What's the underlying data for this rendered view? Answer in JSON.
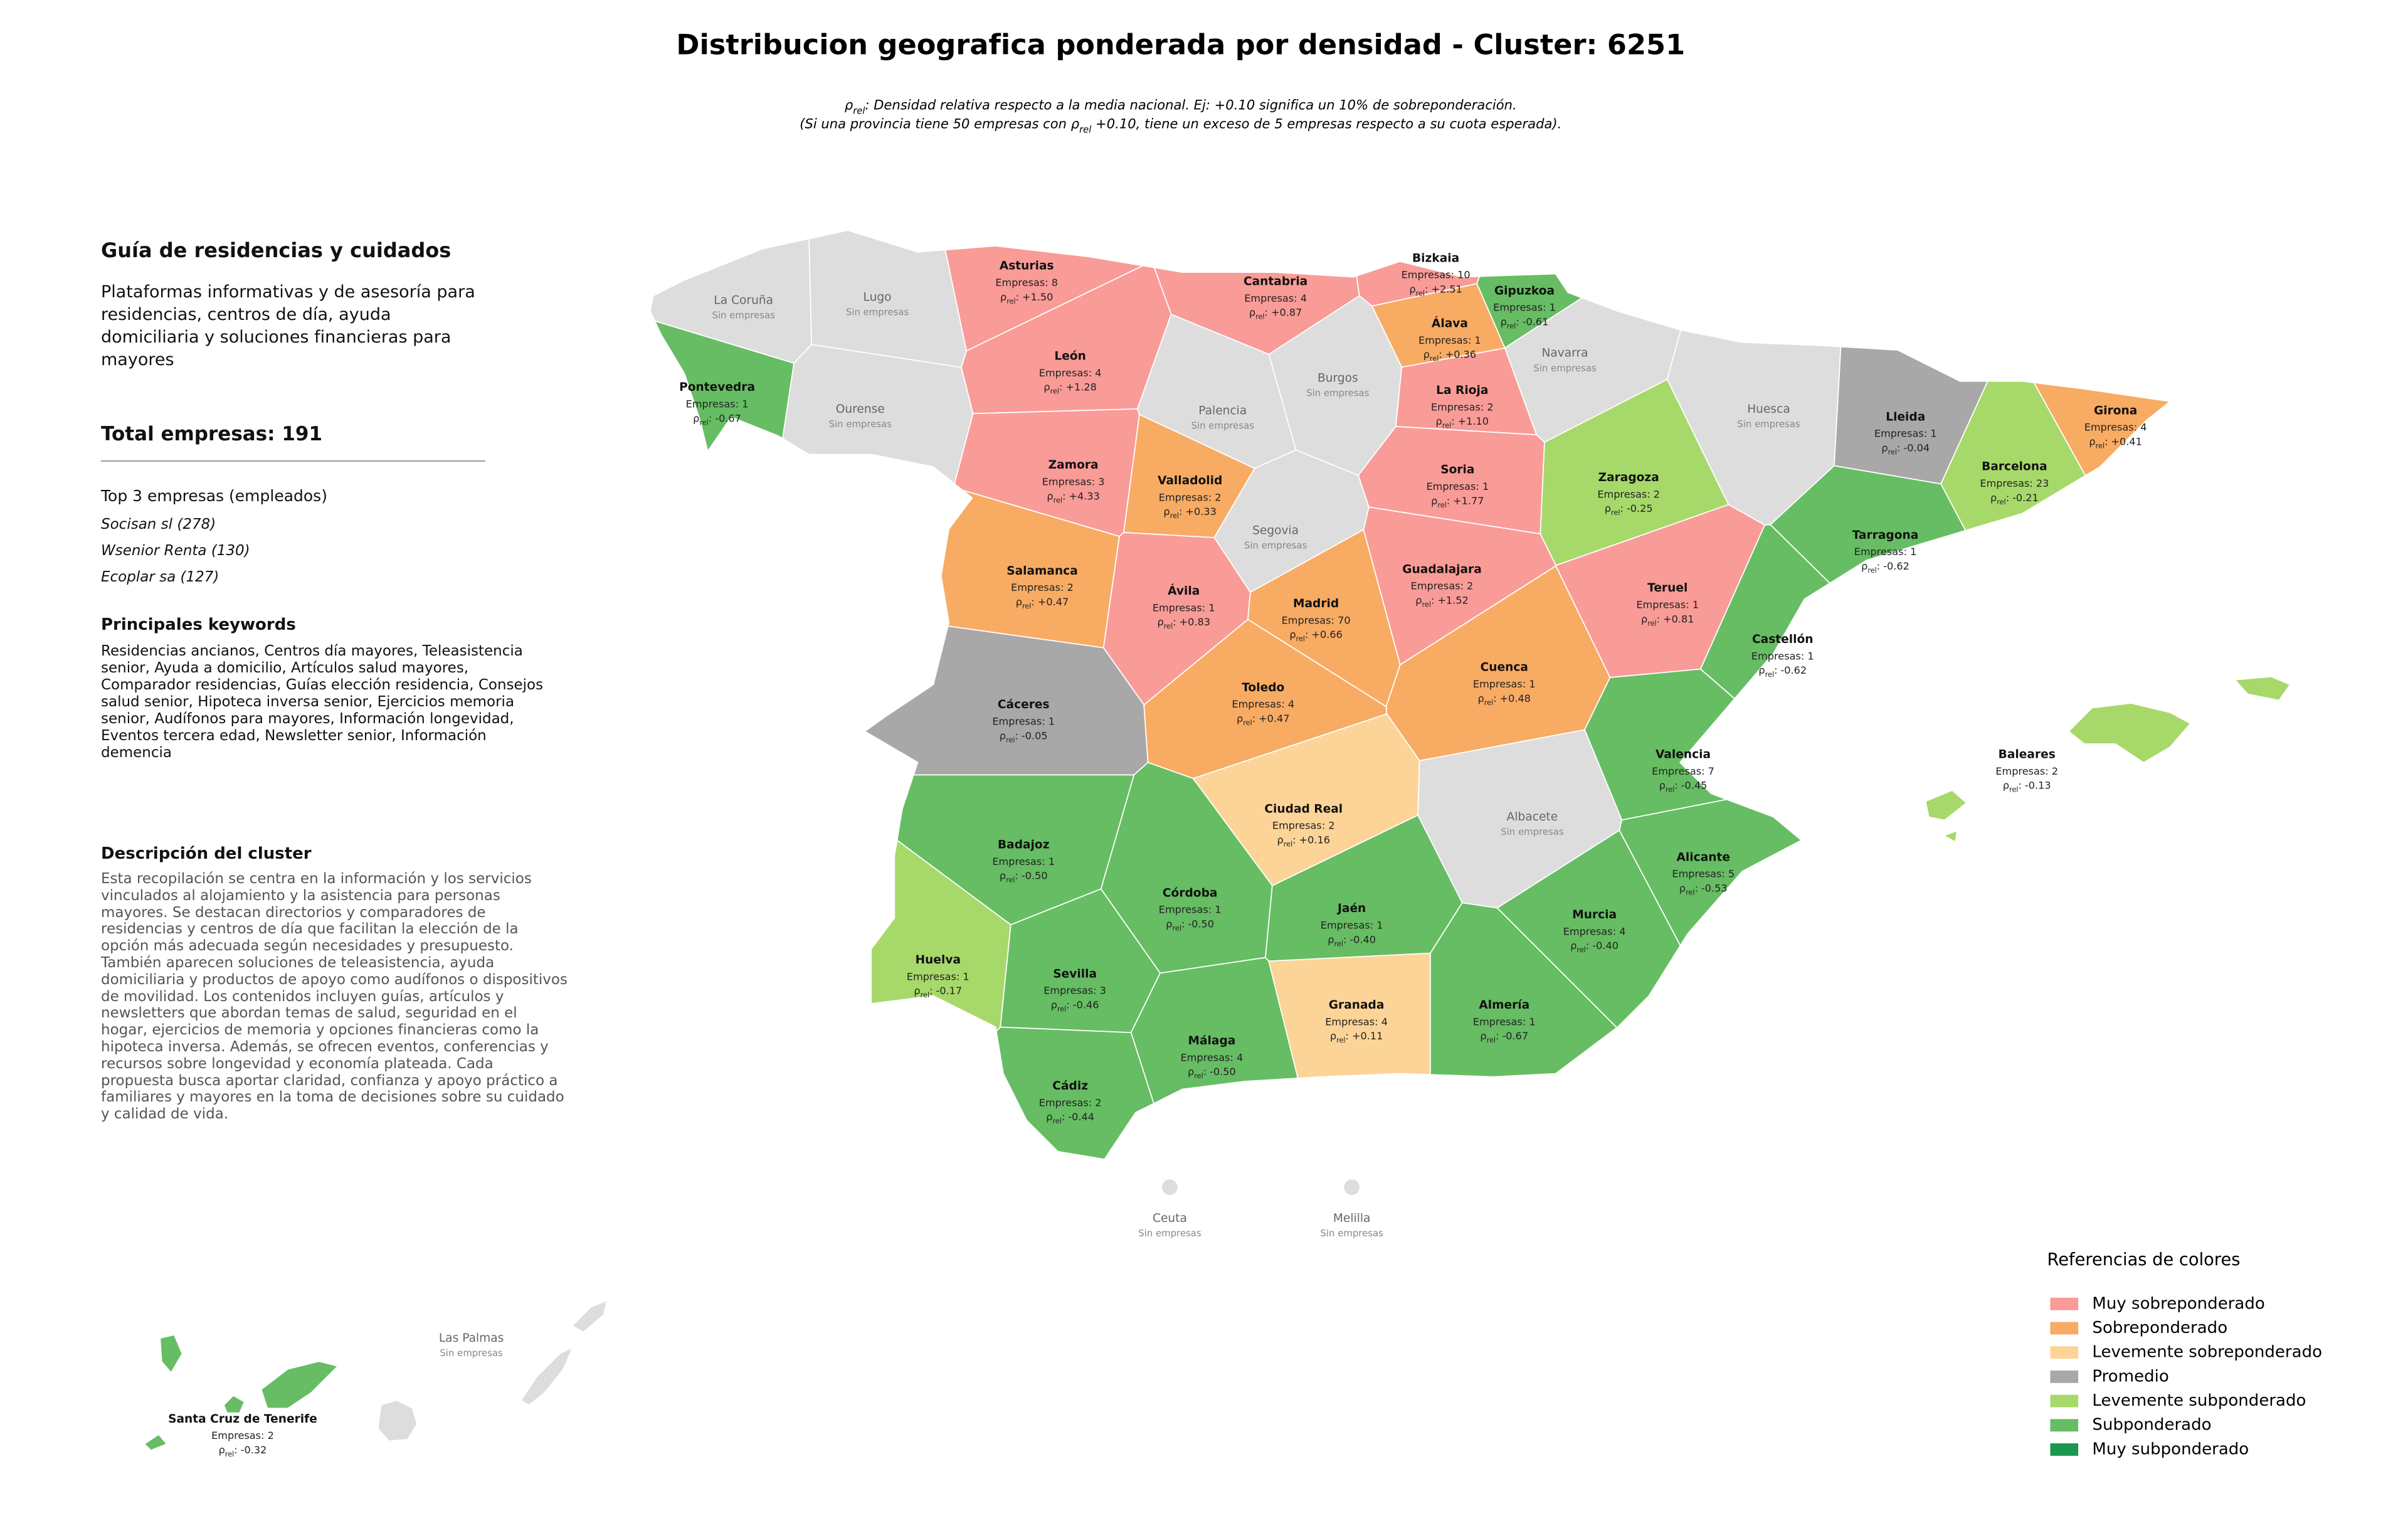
{
  "header": {
    "title": "Distribucion geografica ponderada por densidad - Cluster: 6251",
    "note_lines": [
      [
        {
          "text": "ρ"
        },
        {
          "sub": "rel"
        },
        {
          "text": ": Densidad relativa respecto a la media nacional. Ej: +0.10 significa un 10% de sobreponderación."
        }
      ],
      [
        {
          "text": "(Si una provincia tiene 50 empresas con ρ"
        },
        {
          "sub": "rel"
        },
        {
          "text": " +0.10, tiene un exceso de 5 empresas respecto a su cuota esperada)."
        }
      ]
    ]
  },
  "panel": {
    "title": "Guía de residencias y cuidados",
    "description": "Plataformas informativas y de asesoría para residencias, centros de día, ayuda domiciliaria y soluciones financieras para mayores",
    "total": "Total empresas: 191",
    "top_title": "Top 3 empresas (empleados)",
    "top": [
      "Socisan sl (278)",
      "Wsenior Renta (130)",
      "Ecoplar sa (127)"
    ],
    "keywords_title": "Principales keywords",
    "keywords": "Residencias ancianos, Centros día mayores, Teleasistencia senior, Ayuda a domicilio, Artículos salud mayores, Comparador residencias, Guías elección residencia, Consejos salud senior, Hipoteca inversa senior, Ejercicios memoria senior, Audífonos para mayores, Información longevidad, Eventos tercera edad, Newsletter senior, Información demencia",
    "cluster_title": "Descripción del cluster",
    "cluster_text": "Esta recopilación se centra en la información y los servicios vinculados al alojamiento y la asistencia para personas mayores. Se destacan directorios y comparadores de residencias y centros de día que facilitan la elección de la opción más adecuada según necesidades y presupuesto. También aparecen soluciones de teleasistencia, ayuda domiciliaria y productos de apoyo como audífonos o dispositivos de movilidad. Los contenidos incluyen guías, artículos y newsletters que abordan temas de salud, seguridad en el hogar, ejercicios de memoria y opciones financieras como la hipoteca inversa. Además, se ofrecen eventos, conferencias y recursos sobre longevidad y economía plateada. Cada propuesta busca aportar claridad, confianza y apoyo práctico a familiares y mayores en la toma de decisiones sobre su cuidado y calidad de vida."
  },
  "rho_label": [
    {
      "text": "ρ"
    },
    {
      "sub": "rel"
    },
    {
      "text": ":"
    }
  ],
  "provinces": [
    {
      "name": "La Coruña",
      "status": "Sin empresas",
      "color": "#dddddd"
    },
    {
      "name": "Lugo",
      "status": "Sin empresas",
      "color": "#dddddd"
    },
    {
      "name": "Asturias",
      "companies": "Empresas: 8",
      "rho": "+1.50",
      "color": "#f99b97"
    },
    {
      "name": "Cantabria",
      "companies": "Empresas: 4",
      "rho": "+0.87",
      "color": "#f99b97"
    },
    {
      "name": "Bizkaia",
      "companies": "Empresas: 10",
      "rho": "+2.51",
      "color": "#f99b97"
    },
    {
      "name": "Gipuzkoa",
      "companies": "Empresas: 1",
      "rho": "-0.61",
      "color": "#66bd63"
    },
    {
      "name": "Álava",
      "companies": "Empresas: 1",
      "rho": "+0.36",
      "color": "#f8ab63"
    },
    {
      "name": "Navarra",
      "status": "Sin empresas",
      "color": "#dddddd"
    },
    {
      "name": "Pontevedra",
      "companies": "Empresas: 1",
      "rho": "-0.67",
      "color": "#66bd63"
    },
    {
      "name": "Ourense",
      "status": "Sin empresas",
      "color": "#dddddd"
    },
    {
      "name": "León",
      "companies": "Empresas: 4",
      "rho": "+1.28",
      "color": "#f99b97"
    },
    {
      "name": "Palencia",
      "status": "Sin empresas",
      "color": "#dddddd"
    },
    {
      "name": "Burgos",
      "status": "Sin empresas",
      "color": "#dddddd"
    },
    {
      "name": "La Rioja",
      "companies": "Empresas: 2",
      "rho": "+1.10",
      "color": "#f99b97"
    },
    {
      "name": "Huesca",
      "status": "Sin empresas",
      "color": "#dddddd"
    },
    {
      "name": "Lleida",
      "companies": "Empresas: 1",
      "rho": "-0.04",
      "color": "#a8a8a8"
    },
    {
      "name": "Girona",
      "companies": "Empresas: 4",
      "rho": "+0.41",
      "color": "#f8ab63"
    },
    {
      "name": "Barcelona",
      "companies": "Empresas: 23",
      "rho": "-0.21",
      "color": "#a7d96a"
    },
    {
      "name": "Zamora",
      "companies": "Empresas: 3",
      "rho": "+4.33",
      "color": "#f99b97"
    },
    {
      "name": "Valladolid",
      "companies": "Empresas: 2",
      "rho": "+0.33",
      "color": "#f8ab63"
    },
    {
      "name": "Soria",
      "companies": "Empresas: 1",
      "rho": "+1.77",
      "color": "#f99b97"
    },
    {
      "name": "Zaragoza",
      "companies": "Empresas: 2",
      "rho": "-0.25",
      "color": "#a7d96a"
    },
    {
      "name": "Tarragona",
      "companies": "Empresas: 1",
      "rho": "-0.62",
      "color": "#66bd63"
    },
    {
      "name": "Segovia",
      "status": "Sin empresas",
      "color": "#dddddd"
    },
    {
      "name": "Salamanca",
      "companies": "Empresas: 2",
      "rho": "+0.47",
      "color": "#f8ab63"
    },
    {
      "name": "Ávila",
      "companies": "Empresas: 1",
      "rho": "+0.83",
      "color": "#f99b97"
    },
    {
      "name": "Madrid",
      "companies": "Empresas: 70",
      "rho": "+0.66",
      "color": "#f8ab63"
    },
    {
      "name": "Guadalajara",
      "companies": "Empresas: 2",
      "rho": "+1.52",
      "color": "#f99b97"
    },
    {
      "name": "Teruel",
      "companies": "Empresas: 1",
      "rho": "+0.81",
      "color": "#f99b97"
    },
    {
      "name": "Castellón",
      "companies": "Empresas: 1",
      "rho": "-0.62",
      "color": "#66bd63"
    },
    {
      "name": "Cáceres",
      "companies": "Empresas: 1",
      "rho": "-0.05",
      "color": "#a8a8a8"
    },
    {
      "name": "Toledo",
      "companies": "Empresas: 4",
      "rho": "+0.47",
      "color": "#f8ab63"
    },
    {
      "name": "Cuenca",
      "companies": "Empresas: 1",
      "rho": "+0.48",
      "color": "#f8ab63"
    },
    {
      "name": "Valencia",
      "companies": "Empresas: 7",
      "rho": "-0.45",
      "color": "#66bd63"
    },
    {
      "name": "Ciudad Real",
      "companies": "Empresas: 2",
      "rho": "+0.16",
      "color": "#fdd497"
    },
    {
      "name": "Albacete",
      "status": "Sin empresas",
      "color": "#dddddd"
    },
    {
      "name": "Badajoz",
      "companies": "Empresas: 1",
      "rho": "-0.50",
      "color": "#66bd63"
    },
    {
      "name": "Alicante",
      "companies": "Empresas: 5",
      "rho": "-0.53",
      "color": "#66bd63"
    },
    {
      "name": "Córdoba",
      "companies": "Empresas: 1",
      "rho": "-0.50",
      "color": "#66bd63"
    },
    {
      "name": "Jaén",
      "companies": "Empresas: 1",
      "rho": "-0.40",
      "color": "#66bd63"
    },
    {
      "name": "Huelva",
      "companies": "Empresas: 1",
      "rho": "-0.17",
      "color": "#a7d96a"
    },
    {
      "name": "Murcia",
      "companies": "Empresas: 4",
      "rho": "-0.40",
      "color": "#66bd63"
    },
    {
      "name": "Sevilla",
      "companies": "Empresas: 3",
      "rho": "-0.46",
      "color": "#66bd63"
    },
    {
      "name": "Granada",
      "companies": "Empresas: 4",
      "rho": "+0.11",
      "color": "#fdd497"
    },
    {
      "name": "Almería",
      "companies": "Empresas: 1",
      "rho": "-0.67",
      "color": "#66bd63"
    },
    {
      "name": "Málaga",
      "companies": "Empresas: 4",
      "rho": "-0.50",
      "color": "#66bd63"
    },
    {
      "name": "Cádiz",
      "companies": "Empresas: 2",
      "rho": "-0.44",
      "color": "#66bd63"
    },
    {
      "name": "Baleares",
      "companies": "Empresas: 2",
      "rho": "-0.13",
      "color": "#a7d96a"
    },
    {
      "name": "Santa Cruz de Tenerife",
      "companies": "Empresas: 2",
      "rho": "-0.32",
      "color": "#66bd63"
    },
    {
      "name": "Las Palmas",
      "status": "Sin empresas",
      "color": "#dddddd"
    },
    {
      "name": "Ceuta",
      "status": "Sin empresas",
      "color": "#dddddd"
    },
    {
      "name": "Melilla",
      "status": "Sin empresas",
      "color": "#dddddd"
    }
  ],
  "legend": {
    "title": "Referencias de colores",
    "items": [
      {
        "name": "Muy sobreponderado",
        "color": "#f99b97"
      },
      {
        "name": "Sobreponderado",
        "color": "#f8ab63"
      },
      {
        "name": "Levemente sobreponderado",
        "color": "#fdd497"
      },
      {
        "name": "Promedio",
        "color": "#a8a8a8"
      },
      {
        "name": "Levemente subponderado",
        "color": "#a7d96a"
      },
      {
        "name": "Subponderado",
        "color": "#66bd63"
      },
      {
        "name": "Muy subponderado",
        "color": "#1a9850"
      }
    ]
  }
}
